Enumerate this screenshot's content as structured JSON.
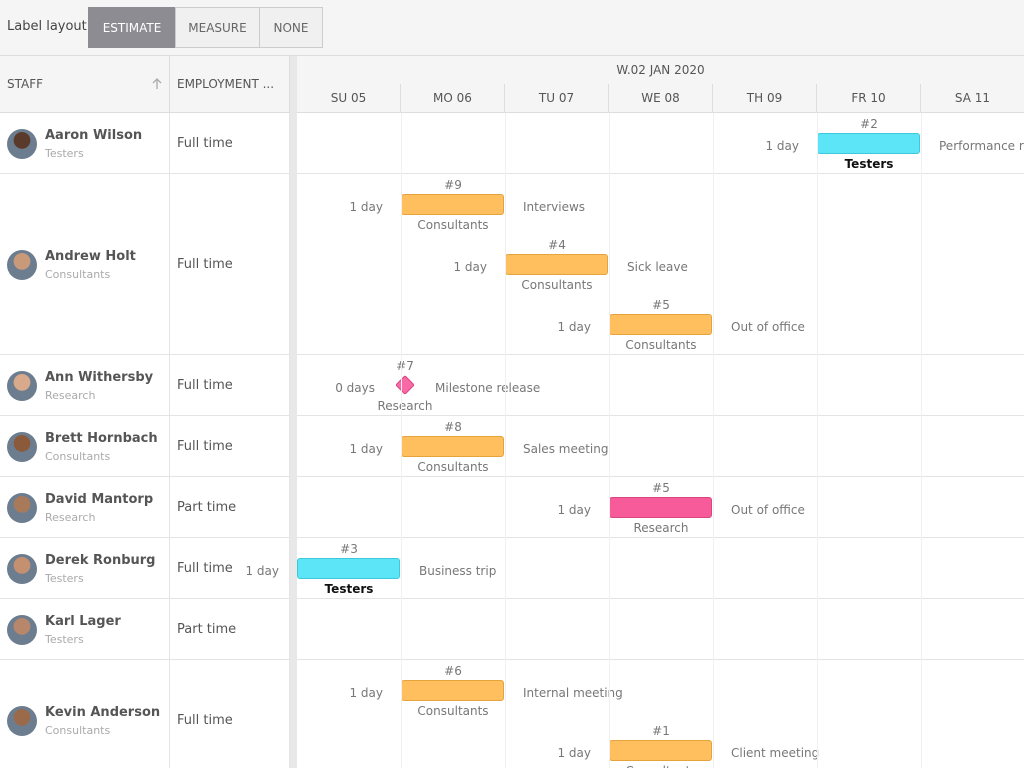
{
  "toolbar": {
    "label": "Label layout",
    "buttons": [
      "ESTIMATE",
      "MEASURE",
      "NONE"
    ],
    "active": 0
  },
  "grid": {
    "columns": [
      "STAFF",
      "EMPLOYMENT ..."
    ],
    "week": "W.02 JAN 2020",
    "days": [
      "SU 05",
      "MO 06",
      "TU 07",
      "WE 08",
      "TH 09",
      "FR 10",
      "SA 11"
    ]
  },
  "resources": [
    {
      "name": "Aaron Wilson",
      "group": "Testers",
      "employment": "Full time",
      "events": [
        {
          "id": "#2",
          "day": "FR 10",
          "duration": "1 day",
          "name": "Performance rev",
          "group": "Testers",
          "color": "cyan"
        }
      ]
    },
    {
      "name": "Andrew Holt",
      "group": "Consultants",
      "employment": "Full time",
      "events": [
        {
          "id": "#9",
          "day": "MO 06",
          "duration": "1 day",
          "name": "Interviews",
          "group": "Consultants",
          "color": "orange"
        },
        {
          "id": "#4",
          "day": "TU 07",
          "duration": "1 day",
          "name": "Sick leave",
          "group": "Consultants",
          "color": "orange"
        },
        {
          "id": "#5",
          "day": "WE 08",
          "duration": "1 day",
          "name": "Out of office",
          "group": "Consultants",
          "color": "orange"
        }
      ]
    },
    {
      "name": "Ann Withersby",
      "group": "Research",
      "employment": "Full time",
      "events": [
        {
          "id": "#7",
          "day": "MO 06",
          "duration": "0 days",
          "name": "Milestone release",
          "group": "Research",
          "color": "pink",
          "milestone": true
        }
      ]
    },
    {
      "name": "Brett Hornbach",
      "group": "Consultants",
      "employment": "Full time",
      "events": [
        {
          "id": "#8",
          "day": "MO 06",
          "duration": "1 day",
          "name": "Sales meeting",
          "group": "Consultants",
          "color": "orange"
        }
      ]
    },
    {
      "name": "David Mantorp",
      "group": "Research",
      "employment": "Part time",
      "events": [
        {
          "id": "#5",
          "day": "WE 08",
          "duration": "1 day",
          "name": "Out of office",
          "group": "Research",
          "color": "pink"
        }
      ]
    },
    {
      "name": "Derek Ronburg",
      "group": "Testers",
      "employment": "Full time",
      "events": [
        {
          "id": "#3",
          "day": "SU 05",
          "duration": "1 day",
          "name": "Business trip",
          "group": "Testers",
          "color": "cyan"
        }
      ]
    },
    {
      "name": "Karl Lager",
      "group": "Testers",
      "employment": "Part time",
      "events": []
    },
    {
      "name": "Kevin Anderson",
      "group": "Consultants",
      "employment": "Full time",
      "events": [
        {
          "id": "#6",
          "day": "MO 06",
          "duration": "1 day",
          "name": "Internal meeting",
          "group": "Consultants",
          "color": "orange"
        },
        {
          "id": "#1",
          "day": "WE 08",
          "duration": "1 day",
          "name": "Client meeting",
          "group": "Consultants",
          "color": "orange"
        }
      ]
    }
  ]
}
